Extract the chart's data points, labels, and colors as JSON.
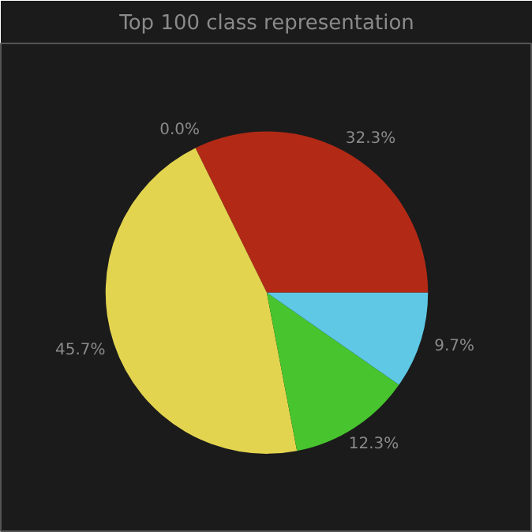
{
  "chart_data": {
    "type": "pie",
    "title": "Top 100 class representation",
    "categories": [
      null,
      null,
      null,
      null,
      null
    ],
    "values": [
      32.3,
      0.0,
      45.7,
      12.3,
      9.7
    ],
    "colors": [
      "#b22a16",
      "#8a5cc4",
      "#e3d450",
      "#48c42e",
      "#5ec8e5"
    ],
    "value_labels": [
      "32.3%",
      "0.0%",
      "45.7%",
      "12.3%",
      "9.7%"
    ]
  }
}
